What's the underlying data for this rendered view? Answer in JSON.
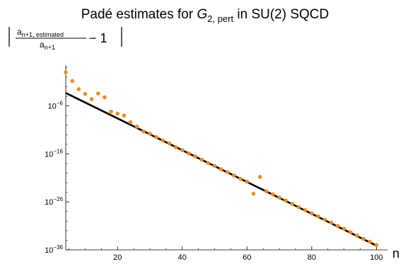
{
  "chart_data": {
    "type": "scatter",
    "title": {
      "prefix": "Padé estimates for ",
      "symbol": "G",
      "subscript": "2, pert",
      "suffix": " in SU(2) SQCD"
    },
    "ylabel": {
      "numerator": "a",
      "numerator_sub": "n+1, estimated",
      "denominator": "a",
      "denominator_sub": "n+1",
      "tail": "− 1"
    },
    "xlabel": "n",
    "x_ticks": [
      "20",
      "40",
      "60",
      "80",
      "100"
    ],
    "x_tick_values": [
      20,
      40,
      60,
      80,
      100
    ],
    "y_ticks": [
      {
        "exp": -6,
        "base": "10",
        "sup": "−6"
      },
      {
        "exp": -16,
        "base": "10",
        "sup": "−16"
      },
      {
        "exp": -26,
        "base": "10",
        "sup": "−26"
      },
      {
        "exp": -36,
        "base": "10",
        "sup": "−36"
      }
    ],
    "xlim": [
      4,
      101
    ],
    "ylim_log10": [
      -36,
      2.5
    ],
    "y_scale": "log",
    "colors": {
      "points": "#f28c1a",
      "line": "#000000"
    },
    "series": [
      {
        "type": "line",
        "x": [
          4,
          100
        ],
        "log10_y": [
          -3.3,
          -35.1
        ]
      },
      {
        "type": "scatter",
        "x": [
          4,
          6,
          8,
          10,
          12,
          14,
          16,
          18,
          20,
          22,
          24,
          26,
          28,
          30,
          32,
          34,
          36,
          38,
          40,
          42,
          44,
          46,
          48,
          50,
          52,
          54,
          56,
          58,
          60,
          62,
          64,
          66,
          68,
          70,
          72,
          74,
          76,
          78,
          80,
          82,
          84,
          86,
          88,
          90,
          92,
          94,
          96,
          98,
          100
        ],
        "log10_y": [
          1.0,
          -0.8,
          -2.5,
          -3.5,
          -4.6,
          -3.4,
          -4.2,
          -7.2,
          -7.6,
          -8.0,
          -9.4,
          -10.3,
          -11.3,
          -11.8,
          -12.5,
          -13.2,
          -13.8,
          -14.6,
          -15.2,
          -15.9,
          -16.5,
          -17.2,
          -17.9,
          -18.5,
          -19.2,
          -19.8,
          -20.5,
          -21.2,
          -21.8,
          -24.3,
          -20.8,
          -23.8,
          -24.4,
          -25.1,
          -25.7,
          -26.4,
          -27.1,
          -27.7,
          -28.4,
          -29.0,
          -29.7,
          -30.3,
          -31.0,
          -31.6,
          -32.3,
          -33.0,
          -33.7,
          -34.3,
          -35.0
        ]
      }
    ]
  }
}
